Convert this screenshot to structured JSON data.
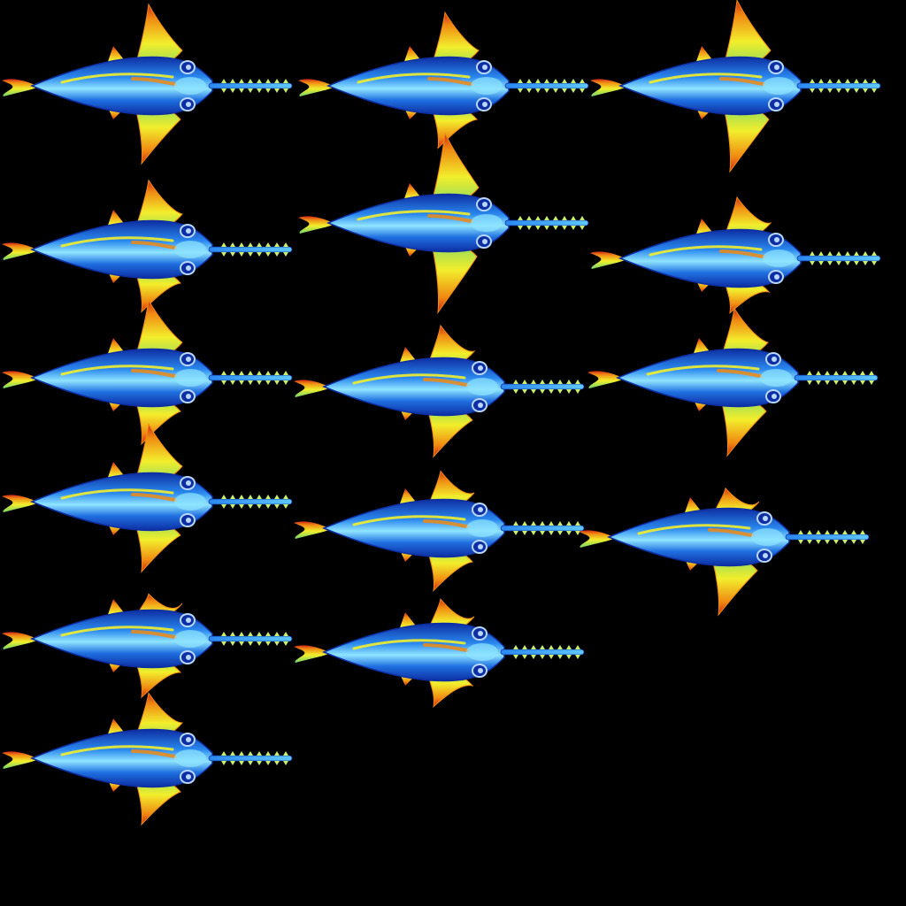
{
  "sprite_sheet": {
    "subject": "sawfish-sprite",
    "background_color": "#000000",
    "colors": {
      "body_dark": "#0d2fa3",
      "body_mid": "#1f6fe0",
      "body_light": "#8fe4ff",
      "fin_yellow": "#f2ee2c",
      "fin_orange": "#f08a12",
      "fin_red": "#d02818",
      "fin_green": "#6fd46a",
      "saw_teeth": "#c9f06a",
      "eye_ring": "#b8d8ff"
    },
    "frame_count": 15,
    "frames": [
      {
        "id": "frame-1"
      },
      {
        "id": "frame-2"
      },
      {
        "id": "frame-3"
      },
      {
        "id": "frame-4"
      },
      {
        "id": "frame-5"
      },
      {
        "id": "frame-6"
      },
      {
        "id": "frame-7"
      },
      {
        "id": "frame-8"
      },
      {
        "id": "frame-9"
      },
      {
        "id": "frame-10"
      },
      {
        "id": "frame-11"
      },
      {
        "id": "frame-12"
      },
      {
        "id": "frame-13"
      },
      {
        "id": "frame-14"
      },
      {
        "id": "frame-15"
      }
    ]
  }
}
